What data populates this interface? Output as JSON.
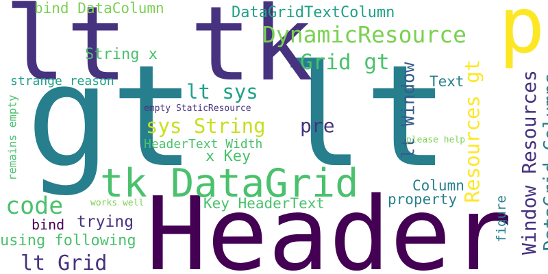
{
  "palette": {
    "deep_purple": "#440154",
    "indigo": "#46327e",
    "slate_blue": "#365c8d",
    "steel_blue": "#277f8e",
    "teal": "#1fa187",
    "green": "#4ac16d",
    "lime": "#a0da39",
    "yellow": "#fde725"
  },
  "words": [
    {
      "text": "gt lt",
      "color": "#277f8e"
    },
    {
      "text": "Header",
      "color": "#440154"
    },
    {
      "text": "lt tk",
      "color": "#46327e"
    },
    {
      "text": "p",
      "color": "#fde725"
    },
    {
      "text": "tk DataGrid",
      "color": "#4ac16d"
    },
    {
      "text": "DynamicResource",
      "color": "#7ad151"
    },
    {
      "text": "DataGridTextColumn",
      "color": "#1fa187"
    },
    {
      "text": "bind DataColumn",
      "color": "#7ad151"
    },
    {
      "text": "Grid gt",
      "color": "#4ac16d"
    },
    {
      "text": "String x",
      "color": "#4ac16d"
    },
    {
      "text": "lt sys",
      "color": "#1fa187"
    },
    {
      "text": "sys String",
      "color": "#c7e020"
    },
    {
      "text": "pre",
      "color": "#46327e"
    },
    {
      "text": "strange reason",
      "color": "#1fa187"
    },
    {
      "text": "empty StaticResource",
      "color": "#46327e"
    },
    {
      "text": "HeaderText Width",
      "color": "#4ac16d"
    },
    {
      "text": "x Key",
      "color": "#4ac16d"
    },
    {
      "text": "lt Window",
      "color": "#365c8d"
    },
    {
      "text": "Text",
      "color": "#277f8e"
    },
    {
      "text": "Resources gt",
      "color": "#fde725"
    },
    {
      "text": "Window Resources",
      "color": "#46327e"
    },
    {
      "text": "DataGrid Columns",
      "color": "#277f8e"
    },
    {
      "text": "please help",
      "color": "#7ad151"
    },
    {
      "text": "remains empty",
      "color": "#4ac16d"
    },
    {
      "text": "Column",
      "color": "#277f8e"
    },
    {
      "text": "code",
      "color": "#4ac16d"
    },
    {
      "text": "Key HeaderText",
      "color": "#4ac16d"
    },
    {
      "text": "property",
      "color": "#277f8e"
    },
    {
      "text": "works well",
      "color": "#7ad151"
    },
    {
      "text": "figure",
      "color": "#277f8e"
    },
    {
      "text": "trying",
      "color": "#46327e"
    },
    {
      "text": "bind",
      "color": "#440154"
    },
    {
      "text": "using following",
      "color": "#4ac16d"
    },
    {
      "text": "lt Grid",
      "color": "#46327e"
    }
  ]
}
